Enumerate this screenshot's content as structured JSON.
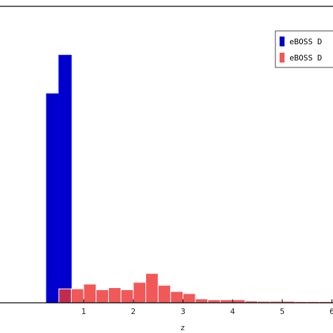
{
  "chart_data": {
    "type": "bar",
    "title": "",
    "xlabel": "z",
    "ylabel": "",
    "xlim": [
      -0.7,
      6.05
    ],
    "ylim": [
      0,
      1.0
    ],
    "grid": false,
    "legend_position": "top-right",
    "bin_width": 0.25,
    "xticks": [
      1,
      2,
      3,
      4,
      5,
      6
    ],
    "xtick_labels": [
      "1",
      "2",
      "3",
      "4",
      "5",
      "6"
    ],
    "series": [
      {
        "name": "eBOSS D",
        "color": "#0000cc",
        "edge_color": "#0000ff",
        "opacity": 1.0,
        "bins": [
          {
            "x0": 0.25,
            "x1": 0.5,
            "value": 0.705
          },
          {
            "x0": 0.5,
            "x1": 0.75,
            "value": 0.835
          }
        ]
      },
      {
        "name": "eBOSS D",
        "color": "#ee3333",
        "edge_color": "#ffffff",
        "opacity": 0.82,
        "bins": [
          {
            "x0": 0.5,
            "x1": 0.75,
            "value": 0.047
          },
          {
            "x0": 0.75,
            "x1": 1.0,
            "value": 0.047
          },
          {
            "x0": 1.0,
            "x1": 1.25,
            "value": 0.063
          },
          {
            "x0": 1.25,
            "x1": 1.5,
            "value": 0.044
          },
          {
            "x0": 1.5,
            "x1": 1.75,
            "value": 0.051
          },
          {
            "x0": 1.75,
            "x1": 2.0,
            "value": 0.044
          },
          {
            "x0": 2.0,
            "x1": 2.25,
            "value": 0.069
          },
          {
            "x0": 2.25,
            "x1": 2.5,
            "value": 0.099
          },
          {
            "x0": 2.5,
            "x1": 2.75,
            "value": 0.059
          },
          {
            "x0": 2.75,
            "x1": 3.0,
            "value": 0.038
          },
          {
            "x0": 3.0,
            "x1": 3.25,
            "value": 0.031
          },
          {
            "x0": 3.25,
            "x1": 3.5,
            "value": 0.013
          },
          {
            "x0": 3.5,
            "x1": 3.75,
            "value": 0.01
          },
          {
            "x0": 3.75,
            "x1": 4.0,
            "value": 0.01
          },
          {
            "x0": 4.0,
            "x1": 4.25,
            "value": 0.01
          },
          {
            "x0": 4.25,
            "x1": 4.5,
            "value": 0.006
          },
          {
            "x0": 4.5,
            "x1": 4.75,
            "value": 0.005
          },
          {
            "x0": 4.75,
            "x1": 5.0,
            "value": 0.005
          },
          {
            "x0": 5.0,
            "x1": 5.25,
            "value": 0.005
          },
          {
            "x0": 5.25,
            "x1": 5.5,
            "value": 0.004
          },
          {
            "x0": 5.5,
            "x1": 5.75,
            "value": 0.004
          },
          {
            "x0": 5.75,
            "x1": 6.0,
            "value": 0.004
          }
        ]
      }
    ]
  }
}
